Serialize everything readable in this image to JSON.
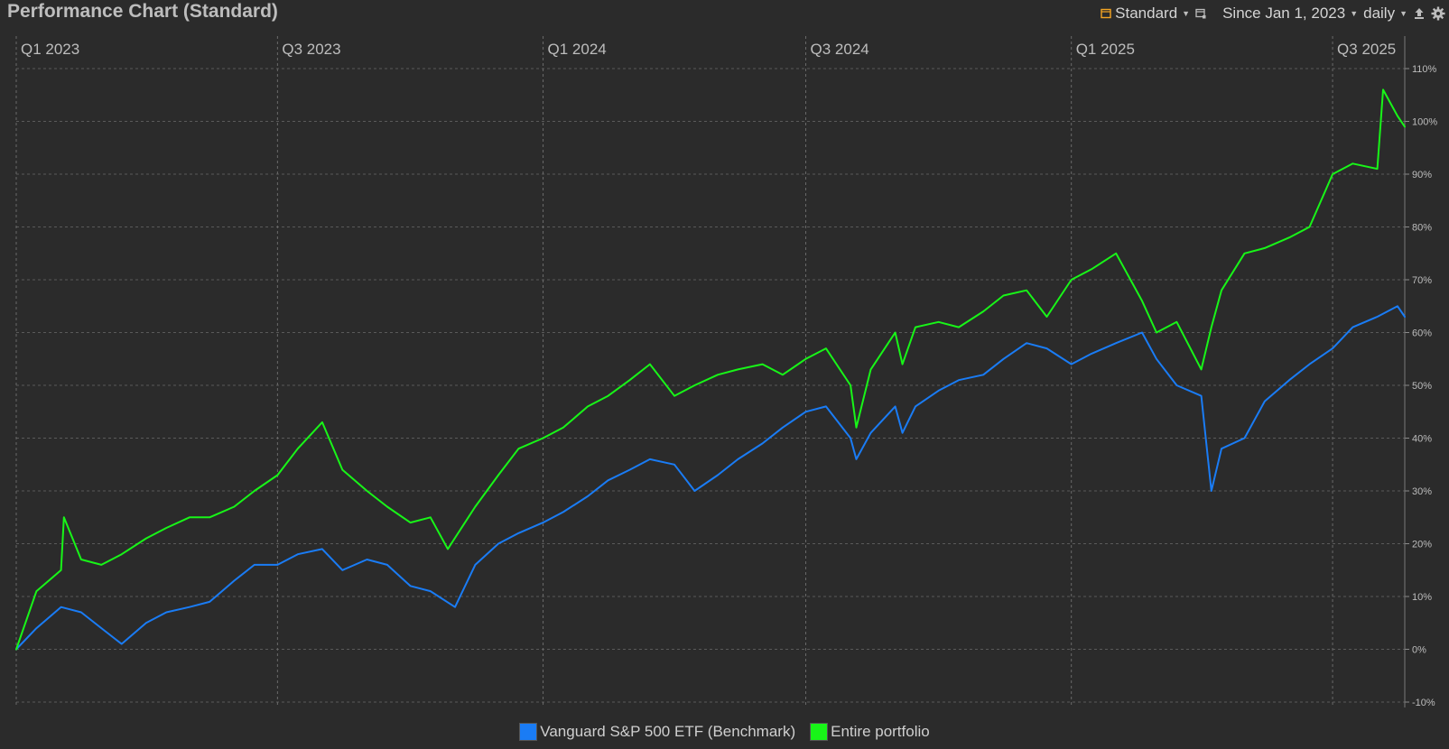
{
  "header": {
    "title": "Performance Chart (Standard)",
    "view_label": "Standard",
    "period_label": "Since Jan 1, 2023",
    "interval_label": "daily",
    "view_icon": "layout-icon",
    "compare_icon": "window-icon",
    "export_icon": "export-icon",
    "settings_icon": "gear-icon"
  },
  "colors": {
    "background": "#2b2b2b",
    "benchmark": "#1a7cf5",
    "portfolio": "#18f518",
    "grid": "#5a5a5a",
    "accent": "#f5a623"
  },
  "chart_data": {
    "type": "line",
    "x_tick_labels": [
      "Q1 2023",
      "Q3 2023",
      "Q1 2024",
      "Q3 2024",
      "Q1 2025",
      "Q3 2025"
    ],
    "x_tick_dates": [
      "2023-01-01",
      "2023-07-01",
      "2024-01-01",
      "2024-07-01",
      "2025-01-01",
      "2025-07-01"
    ],
    "xlim": [
      "2023-01-01",
      "2025-08-20"
    ],
    "ylim": [
      -10,
      110
    ],
    "y_ticks": [
      -10,
      0,
      10,
      20,
      30,
      40,
      50,
      60,
      70,
      80,
      90,
      100,
      110
    ],
    "y_unit": "%",
    "grid": true,
    "legend_position": "bottom-center",
    "series": [
      {
        "name": "Vanguard S&P 500 ETF (Benchmark)",
        "x": [
          "2023-01-01",
          "2023-01-15",
          "2023-02-01",
          "2023-02-15",
          "2023-03-01",
          "2023-03-15",
          "2023-04-01",
          "2023-04-15",
          "2023-05-01",
          "2023-05-15",
          "2023-06-01",
          "2023-06-15",
          "2023-07-01",
          "2023-07-15",
          "2023-08-01",
          "2023-08-15",
          "2023-09-01",
          "2023-09-15",
          "2023-10-01",
          "2023-10-15",
          "2023-11-01",
          "2023-11-15",
          "2023-12-01",
          "2023-12-15",
          "2024-01-01",
          "2024-01-15",
          "2024-02-01",
          "2024-02-15",
          "2024-03-01",
          "2024-03-15",
          "2024-04-01",
          "2024-04-15",
          "2024-05-01",
          "2024-05-15",
          "2024-06-01",
          "2024-06-15",
          "2024-07-01",
          "2024-07-15",
          "2024-08-01",
          "2024-08-05",
          "2024-08-15",
          "2024-09-01",
          "2024-09-06",
          "2024-09-15",
          "2024-10-01",
          "2024-10-15",
          "2024-11-01",
          "2024-11-15",
          "2024-12-01",
          "2024-12-15",
          "2025-01-01",
          "2025-01-15",
          "2025-02-01",
          "2025-02-19",
          "2025-03-01",
          "2025-03-15",
          "2025-04-01",
          "2025-04-08",
          "2025-04-15",
          "2025-05-01",
          "2025-05-15",
          "2025-06-01",
          "2025-06-15",
          "2025-07-01",
          "2025-07-15",
          "2025-08-01",
          "2025-08-15",
          "2025-08-20"
        ],
        "values": [
          0,
          4,
          8,
          7,
          4,
          1,
          5,
          7,
          8,
          9,
          13,
          16,
          16,
          18,
          19,
          15,
          17,
          16,
          12,
          11,
          8,
          16,
          20,
          22,
          24,
          26,
          29,
          32,
          34,
          36,
          35,
          30,
          33,
          36,
          39,
          42,
          45,
          46,
          40,
          36,
          41,
          46,
          41,
          46,
          49,
          51,
          52,
          55,
          58,
          57,
          54,
          56,
          58,
          60,
          55,
          50,
          48,
          30,
          38,
          40,
          47,
          51,
          54,
          57,
          61,
          63,
          65,
          63
        ]
      },
      {
        "name": "Entire portfolio",
        "x": [
          "2023-01-01",
          "2023-01-15",
          "2023-02-01",
          "2023-02-03",
          "2023-02-15",
          "2023-03-01",
          "2023-03-15",
          "2023-04-01",
          "2023-04-15",
          "2023-05-01",
          "2023-05-15",
          "2023-06-01",
          "2023-06-15",
          "2023-07-01",
          "2023-07-15",
          "2023-08-01",
          "2023-08-15",
          "2023-09-01",
          "2023-09-15",
          "2023-10-01",
          "2023-10-15",
          "2023-10-27",
          "2023-11-15",
          "2023-12-01",
          "2023-12-15",
          "2024-01-01",
          "2024-01-15",
          "2024-02-01",
          "2024-02-15",
          "2024-03-01",
          "2024-03-15",
          "2024-04-01",
          "2024-04-15",
          "2024-05-01",
          "2024-05-15",
          "2024-06-01",
          "2024-06-15",
          "2024-07-01",
          "2024-07-15",
          "2024-08-01",
          "2024-08-05",
          "2024-08-15",
          "2024-09-01",
          "2024-09-06",
          "2024-09-15",
          "2024-10-01",
          "2024-10-15",
          "2024-11-01",
          "2024-11-15",
          "2024-12-01",
          "2024-12-15",
          "2025-01-01",
          "2025-01-15",
          "2025-02-01",
          "2025-02-19",
          "2025-03-01",
          "2025-03-15",
          "2025-04-01",
          "2025-04-08",
          "2025-04-15",
          "2025-05-01",
          "2025-05-15",
          "2025-06-01",
          "2025-06-15",
          "2025-07-01",
          "2025-07-15",
          "2025-08-01",
          "2025-08-05",
          "2025-08-15",
          "2025-08-20"
        ],
        "values": [
          0,
          11,
          15,
          25,
          17,
          16,
          18,
          21,
          23,
          25,
          25,
          27,
          30,
          33,
          38,
          43,
          34,
          30,
          27,
          24,
          25,
          19,
          27,
          33,
          38,
          40,
          42,
          46,
          48,
          51,
          54,
          48,
          50,
          52,
          53,
          54,
          52,
          55,
          57,
          50,
          42,
          53,
          60,
          54,
          61,
          62,
          61,
          64,
          67,
          68,
          63,
          70,
          72,
          75,
          66,
          60,
          62,
          53,
          61,
          68,
          75,
          76,
          78,
          80,
          90,
          92,
          91,
          106,
          101,
          99
        ]
      }
    ]
  },
  "legend": {
    "items": [
      {
        "label": "Vanguard S&P 500 ETF (Benchmark)",
        "color": "#1a7cf5"
      },
      {
        "label": "Entire portfolio",
        "color": "#18f518"
      }
    ]
  }
}
